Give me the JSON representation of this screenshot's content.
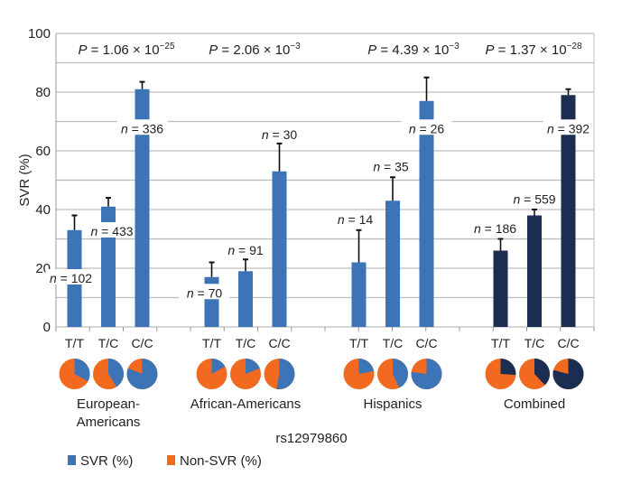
{
  "chart_data": {
    "type": "bar",
    "ylabel": "SVR (%)",
    "xlabel": "rs12979860",
    "ylim": [
      0,
      100
    ],
    "yticks": [
      "0",
      "20",
      "40",
      "60",
      "80",
      "100"
    ],
    "grid": true,
    "legend_position": "bottom-left",
    "legend": [
      {
        "label": "SVR (%)",
        "color": "#3d74b6"
      },
      {
        "label": "Non-SVR (%)",
        "color": "#f26a1f"
      }
    ],
    "groups": [
      {
        "label": "European-\nAmericans",
        "label_lines": [
          "European-",
          "Americans"
        ],
        "p_value": "P = 1.06 × 10",
        "p_exp": "−25",
        "color": "#3d74b6",
        "bars": [
          {
            "category": "T/T",
            "value": 33,
            "error_top": 38,
            "n_label": "n = 102"
          },
          {
            "category": "T/C",
            "value": 41,
            "error_top": 44,
            "n_label": "n = 433"
          },
          {
            "category": "C/C",
            "value": 81,
            "error_top": 83.5,
            "n_label": "n = 336"
          }
        ]
      },
      {
        "label": "African-Americans",
        "label_lines": [
          "African-Americans"
        ],
        "p_value": "P = 2.06 × 10",
        "p_exp": "−3",
        "color": "#3d74b6",
        "bars": [
          {
            "category": "T/T",
            "value": 17,
            "error_top": 22,
            "n_label": "n = 70"
          },
          {
            "category": "T/C",
            "value": 19,
            "error_top": 23,
            "n_label": "n = 91"
          },
          {
            "category": "C/C",
            "value": 53,
            "error_top": 62.5,
            "n_label": "n = 30"
          }
        ]
      },
      {
        "label": "Hispanics",
        "label_lines": [
          "Hispanics"
        ],
        "p_value": "P = 4.39 × 10",
        "p_exp": "−3",
        "color": "#3d74b6",
        "bars": [
          {
            "category": "T/T",
            "value": 22,
            "error_top": 33,
            "n_label": "n = 14"
          },
          {
            "category": "T/C",
            "value": 43,
            "error_top": 51,
            "n_label": "n = 35"
          },
          {
            "category": "C/C",
            "value": 77,
            "error_top": 85,
            "n_label": "n = 26"
          }
        ]
      },
      {
        "label": "Combined",
        "label_lines": [
          "Combined"
        ],
        "p_value": "P = 1.37 × 10",
        "p_exp": "−28",
        "color": "#1b2d50",
        "bars": [
          {
            "category": "T/T",
            "value": 26,
            "error_top": 30,
            "n_label": "n = 186"
          },
          {
            "category": "T/C",
            "value": 38,
            "error_top": 40,
            "n_label": "n = 559"
          },
          {
            "category": "C/C",
            "value": 79,
            "error_top": 81,
            "n_label": "n = 392"
          }
        ]
      }
    ],
    "non_svr_color": "#f26a1f"
  }
}
